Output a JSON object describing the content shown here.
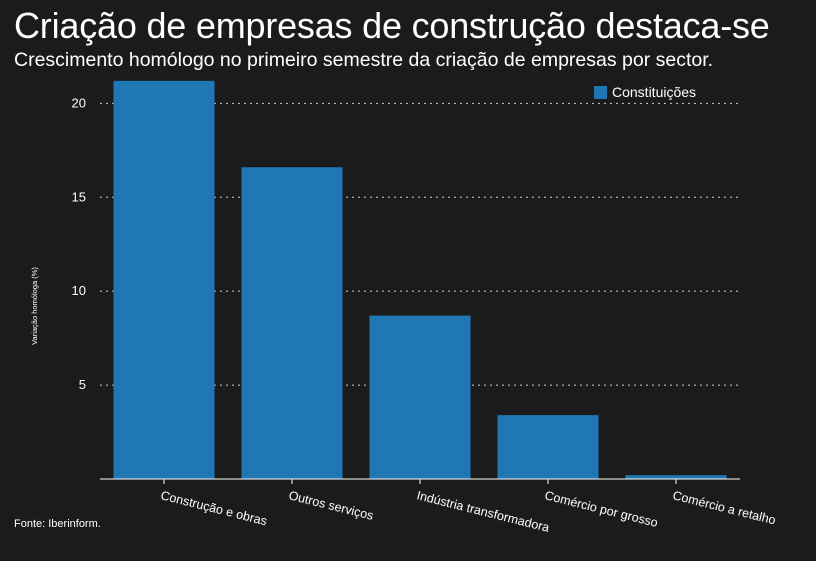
{
  "title": "Criação de empresas de construção destaca-se",
  "subtitle": "Crescimento homólogo no primeiro semestre da criação de empresas por sector.",
  "source": "Fonte: Iberinform.",
  "chart_data": {
    "type": "bar",
    "categories": [
      "Construção e obras",
      "Outros serviços",
      "Indústria transformadora",
      "Comércio por grosso",
      "Comércio a retalho"
    ],
    "series": [
      {
        "name": "Constituições",
        "values": [
          21.2,
          16.6,
          8.7,
          3.4,
          0.2
        ],
        "color": "#1f77b4"
      }
    ],
    "ylabel": "Variação homóloga (%)",
    "ylim": [
      0,
      23
    ],
    "yticks": [
      5,
      10,
      15,
      20
    ],
    "grid": true,
    "legend": "top-right",
    "background": "#1b1b1b"
  }
}
